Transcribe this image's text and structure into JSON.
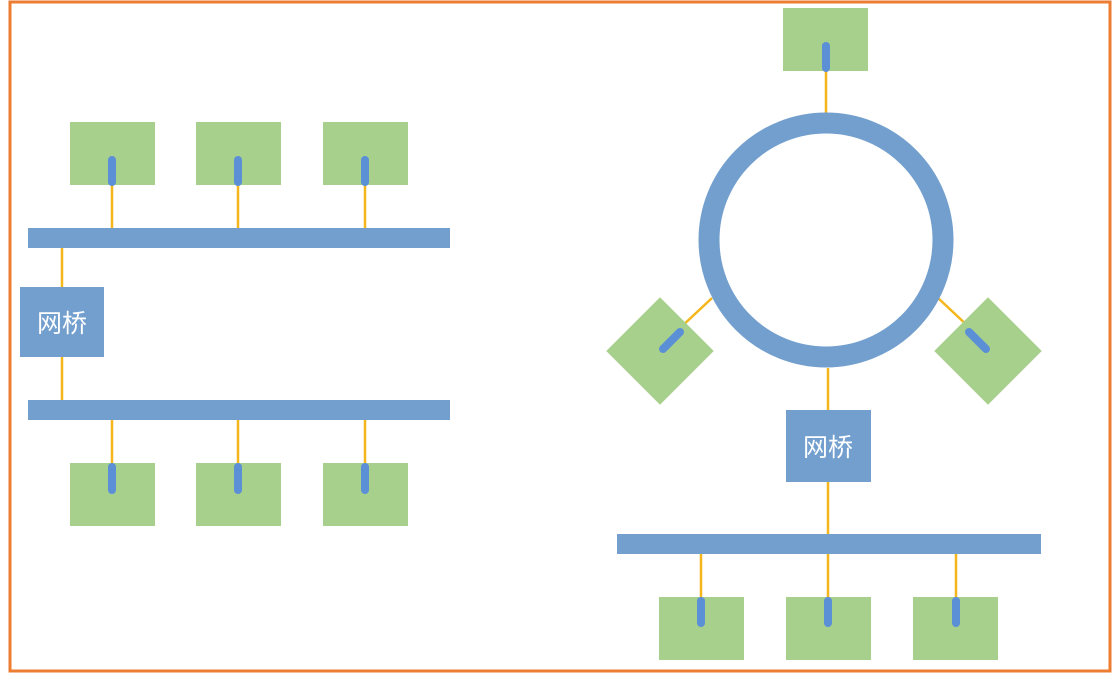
{
  "colors": {
    "frame": "#ED7D31",
    "bus": "#739FCE",
    "node": "#A8D08D",
    "wire": "#F4B61A",
    "connector": "#5B8FD6",
    "bridge": "#739FCE",
    "bridge_text": "#FFFFFF"
  },
  "left_network": {
    "bridge": {
      "label": "网桥"
    }
  },
  "right_network": {
    "bridge": {
      "label": "网桥"
    }
  }
}
